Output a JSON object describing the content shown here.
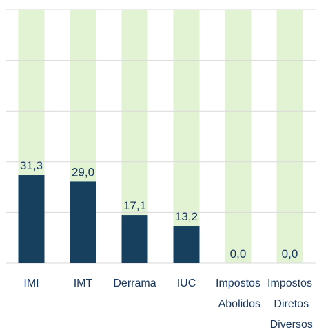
{
  "chart_data": {
    "type": "bar",
    "categories": [
      "IMI",
      "IMT",
      "Derrama",
      "IUC",
      "Impostos Abolidos",
      "Impostos Diretos Diversos"
    ],
    "values": [
      31.3,
      29.0,
      17.1,
      13.2,
      0.0,
      0.0
    ],
    "value_labels": [
      "31,3",
      "29,0",
      "17,1",
      "13,2",
      "0,0",
      "0,0"
    ],
    "color": "#17405e",
    "background_color": "#e2f3d3",
    "ylim": [
      0,
      90
    ],
    "yticks": [
      0,
      18,
      36,
      54,
      72,
      90
    ],
    "grid": true
  }
}
